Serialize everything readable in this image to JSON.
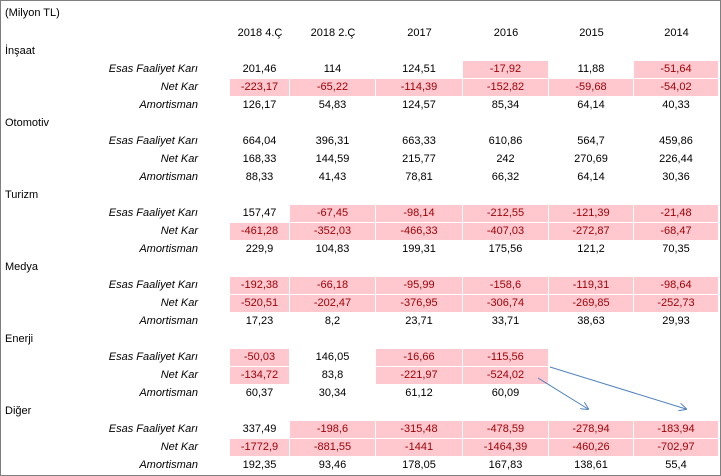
{
  "unit_note": "(Milyon TL)",
  "columns": [
    "2018 4.Ç",
    "2018 2.Ç",
    "2017",
    "2016",
    "2015",
    "2014"
  ],
  "groups": [
    {
      "name": "İnşaat",
      "rows": [
        {
          "label": "Esas Faaliyet Karı",
          "values": [
            "201,46",
            "114",
            "124,51",
            "-17,92",
            "11,88",
            "-51,64"
          ]
        },
        {
          "label": "Net Kar",
          "values": [
            "-223,17",
            "-65,22",
            "-114,39",
            "-152,82",
            "-59,68",
            "-54,02"
          ]
        },
        {
          "label": "Amortisman",
          "values": [
            "126,17",
            "54,83",
            "124,57",
            "85,34",
            "64,14",
            "40,33"
          ]
        }
      ]
    },
    {
      "name": "Otomotiv",
      "rows": [
        {
          "label": "Esas Faaliyet Karı",
          "values": [
            "664,04",
            "396,31",
            "663,33",
            "610,86",
            "564,7",
            "459,86"
          ]
        },
        {
          "label": "Net Kar",
          "values": [
            "168,33",
            "144,59",
            "215,77",
            "242",
            "270,69",
            "226,44"
          ]
        },
        {
          "label": "Amortisman",
          "values": [
            "88,33",
            "41,43",
            "78,81",
            "66,32",
            "64,14",
            "30,36"
          ]
        }
      ]
    },
    {
      "name": "Turizm",
      "rows": [
        {
          "label": "Esas Faaliyet Karı",
          "values": [
            "157,47",
            "-67,45",
            "-98,14",
            "-212,55",
            "-121,39",
            "-21,48"
          ]
        },
        {
          "label": "Net Kar",
          "values": [
            "-461,28",
            "-352,03",
            "-466,33",
            "-407,03",
            "-272,87",
            "-68,47"
          ]
        },
        {
          "label": "Amortisman",
          "values": [
            "229,9",
            "104,83",
            "199,31",
            "175,56",
            "121,2",
            "70,35"
          ]
        }
      ]
    },
    {
      "name": "Medya",
      "rows": [
        {
          "label": "Esas Faaliyet Karı",
          "values": [
            "-192,38",
            "-66,18",
            "-95,99",
            "-158,6",
            "-119,31",
            "-98,64"
          ]
        },
        {
          "label": "Net Kar",
          "values": [
            "-520,51",
            "-202,47",
            "-376,95",
            "-306,74",
            "-269,85",
            "-252,73"
          ]
        },
        {
          "label": "Amortisman",
          "values": [
            "17,23",
            "8,2",
            "23,71",
            "33,71",
            "38,63",
            "29,93"
          ]
        }
      ]
    },
    {
      "name": "Enerji",
      "rows": [
        {
          "label": "Esas Faaliyet Karı",
          "values": [
            "-50,03",
            "146,05",
            "-16,66",
            "-115,56",
            null,
            null
          ]
        },
        {
          "label": "Net Kar",
          "values": [
            "-134,72",
            "83,8",
            "-221,97",
            "-524,02",
            null,
            null
          ]
        },
        {
          "label": "Amortisman",
          "values": [
            "60,37",
            "30,34",
            "61,12",
            "60,09",
            null,
            null
          ]
        }
      ]
    },
    {
      "name": "Diğer",
      "rows": [
        {
          "label": "Esas Faaliyet Karı",
          "values": [
            "337,49",
            "-198,6",
            "-315,48",
            "-478,59",
            "-278,94",
            "-183,94"
          ]
        },
        {
          "label": "Net Kar",
          "values": [
            "-1772,9",
            "-881,55",
            "-1441",
            "-1464,39",
            "-460,26",
            "-702,97"
          ]
        },
        {
          "label": "Amortisman",
          "values": [
            "192,35",
            "93,46",
            "178,05",
            "167,83",
            "138,61",
            "55,4"
          ]
        }
      ]
    }
  ]
}
